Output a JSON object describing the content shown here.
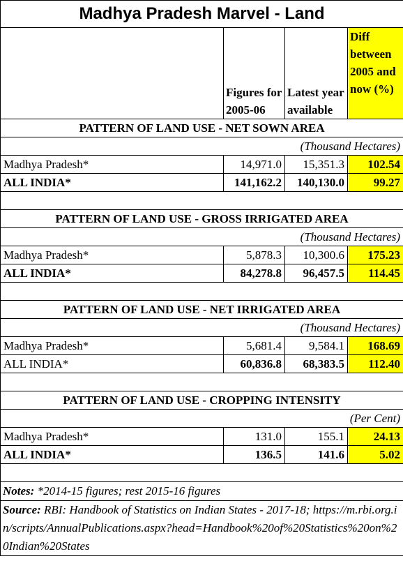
{
  "title": "Madhya Pradesh Marvel - Land",
  "header": {
    "columns": [
      "Figures for 2005-06",
      "Latest year available",
      "Diff between 2005 and now (%)"
    ]
  },
  "sections": [
    {
      "heading": "PATTERN OF LAND USE - NET SOWN AREA",
      "unit": "(Thousand Hectares)",
      "rows": [
        [
          "Madhya Pradesh*",
          "14,971.0",
          "15,351.3",
          "102.54"
        ],
        [
          "ALL INDIA*",
          "141,162.2",
          "140,130.0",
          "99.27"
        ]
      ]
    },
    {
      "heading": "PATTERN OF LAND USE - GROSS IRRIGATED AREA",
      "unit": "(Thousand Hectares)",
      "rows": [
        [
          "Madhya Pradesh*",
          "5,878.3",
          "10,300.6",
          "175.23"
        ],
        [
          "ALL INDIA*",
          "84,278.8",
          "96,457.5",
          "114.45"
        ]
      ]
    },
    {
      "heading": "PATTERN OF LAND USE - NET IRRIGATED AREA",
      "unit": "(Thousand Hectares)",
      "rows": [
        [
          "Madhya Pradesh*",
          "5,681.4",
          "9,584.1",
          "168.69"
        ],
        [
          "ALL INDIA*",
          "60,836.8",
          "68,383.5",
          "112.40"
        ]
      ]
    },
    {
      "heading": "PATTERN OF LAND USE - CROPPING INTENSITY",
      "unit": "(Per Cent)",
      "rows": [
        [
          "Madhya Pradesh*",
          "131.0",
          "155.1",
          "24.13"
        ],
        [
          "ALL INDIA*",
          "136.5",
          "141.6",
          "5.02"
        ]
      ]
    }
  ],
  "notes": {
    "label": "Notes:",
    "text": "*2014-15 figures; rest 2015-16 figures"
  },
  "source": {
    "label": "Source:",
    "text": "RBI: Handbook of Statistics on Indian States - 2017-18; https://m.rbi.org.in/scripts/AnnualPublications.aspx?head=Handbook%20of%20Statistics%20on%20Indian%20States"
  }
}
